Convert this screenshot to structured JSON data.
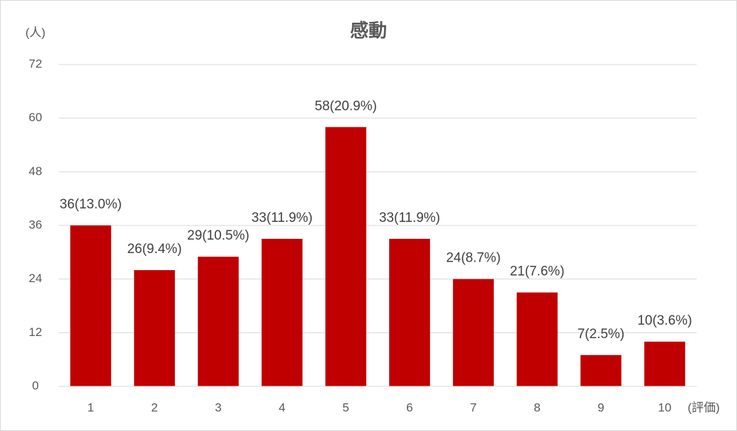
{
  "chart_data": {
    "type": "bar",
    "title": "感動",
    "y_label": "(人)",
    "x_label": "(評価)",
    "categories": [
      "1",
      "2",
      "3",
      "4",
      "5",
      "6",
      "7",
      "8",
      "9",
      "10"
    ],
    "values": [
      36,
      26,
      29,
      33,
      58,
      33,
      24,
      21,
      7,
      10
    ],
    "value_labels": [
      "36(13.0%)",
      "26(9.4%)",
      "29(10.5%)",
      "33(11.9%)",
      "58(20.9%)",
      "33(11.9%)",
      "24(8.7%)",
      "21(7.6%)",
      "7(2.5%)",
      "10(3.6%)"
    ],
    "color": "#c00000",
    "ylim": [
      0,
      72
    ],
    "yticks": [
      0,
      12,
      24,
      36,
      48,
      60,
      72
    ],
    "grid": true
  }
}
